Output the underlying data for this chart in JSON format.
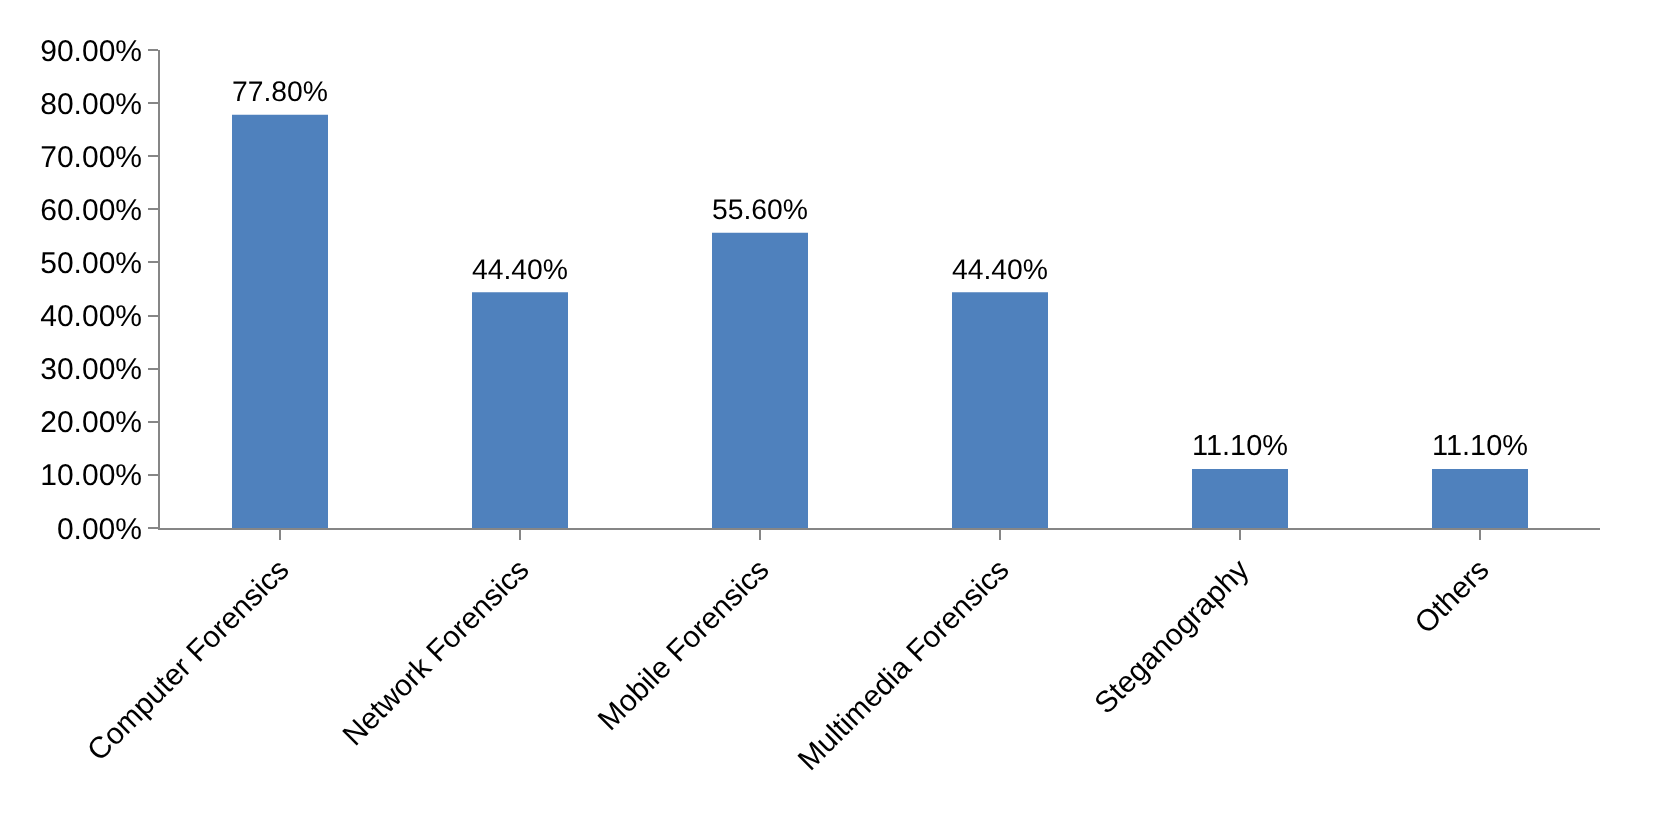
{
  "chart_data": {
    "type": "bar",
    "categories": [
      "Computer Forensics",
      "Network Forensics",
      "Mobile Forensics",
      "Multimedia Forensics",
      "Steganography",
      "Others"
    ],
    "values": [
      77.8,
      44.4,
      55.6,
      44.4,
      11.1,
      11.1
    ],
    "value_labels": [
      "77.80%",
      "44.40%",
      "55.60%",
      "44.40%",
      "11.10%",
      "11.10%"
    ],
    "color": "#4f81bd",
    "ylim": [
      0,
      90
    ],
    "yticks": [
      {
        "value": 0,
        "label": "0.00%"
      },
      {
        "value": 10,
        "label": "10.00%"
      },
      {
        "value": 20,
        "label": "20.00%"
      },
      {
        "value": 30,
        "label": "30.00%"
      },
      {
        "value": 40,
        "label": "40.00%"
      },
      {
        "value": 50,
        "label": "50.00%"
      },
      {
        "value": 60,
        "label": "60.00%"
      },
      {
        "value": 70,
        "label": "70.00%"
      },
      {
        "value": 80,
        "label": "80.00%"
      },
      {
        "value": 90,
        "label": "90.00%"
      }
    ],
    "grid": false
  }
}
